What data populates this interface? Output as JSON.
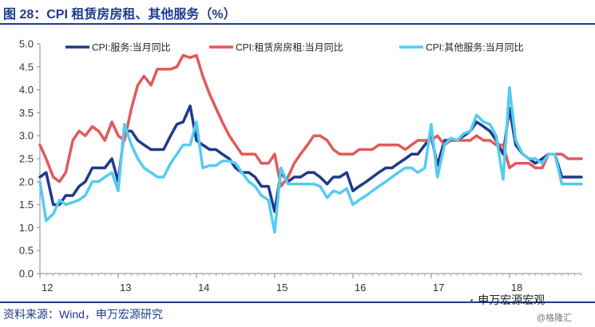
{
  "header": {
    "title": "图 28：CPI 租赁房房租、其他服务（%）"
  },
  "footer": {
    "source": "资料来源：Wind，申万宏源研究"
  },
  "watermark": {
    "text": "申万宏源宏观",
    "sub": "@格隆汇"
  },
  "colors": {
    "services": "#1f3a8a",
    "rent": "#e05a5a",
    "other": "#55ccf0"
  },
  "chart_data": {
    "type": "line",
    "title": "CPI 租赁房房租、其他服务（%）",
    "xlabel": "",
    "ylabel": "",
    "ylim": [
      0.0,
      5.0
    ],
    "yticks": [
      "0.0",
      "0.5",
      "1.0",
      "1.5",
      "2.0",
      "2.5",
      "3.0",
      "3.5",
      "4.0",
      "4.5",
      "5.0"
    ],
    "xlim": [
      2012.0,
      2018.92
    ],
    "xticks": [
      "12",
      "13",
      "14",
      "15",
      "16",
      "17",
      "18"
    ],
    "legend_position": "top",
    "series": [
      {
        "name": "CPI:服务:当月同比",
        "color": "#1f3a8a",
        "x": [
          2012.0,
          2012.08,
          2012.17,
          2012.25,
          2012.33,
          2012.42,
          2012.5,
          2012.58,
          2012.67,
          2012.75,
          2012.83,
          2012.92,
          2013.0,
          2013.08,
          2013.17,
          2013.25,
          2013.33,
          2013.42,
          2013.5,
          2013.58,
          2013.67,
          2013.75,
          2013.83,
          2013.92,
          2014.0,
          2014.08,
          2014.17,
          2014.25,
          2014.33,
          2014.42,
          2014.5,
          2014.58,
          2014.67,
          2014.75,
          2014.83,
          2014.92,
          2015.0,
          2015.08,
          2015.17,
          2015.25,
          2015.33,
          2015.42,
          2015.5,
          2015.58,
          2015.67,
          2015.75,
          2015.83,
          2015.92,
          2016.0,
          2016.08,
          2016.17,
          2016.25,
          2016.33,
          2016.42,
          2016.5,
          2016.58,
          2016.67,
          2016.75,
          2016.83,
          2016.92,
          2017.0,
          2017.08,
          2017.17,
          2017.25,
          2017.33,
          2017.42,
          2017.5,
          2017.58,
          2017.67,
          2017.75,
          2017.83,
          2017.92,
          2018.0,
          2018.08,
          2018.17,
          2018.25,
          2018.33,
          2018.42,
          2018.5,
          2018.58,
          2018.67,
          2018.75,
          2018.83,
          2018.92
        ],
        "values": [
          2.1,
          2.2,
          1.5,
          1.5,
          1.7,
          1.7,
          1.9,
          2.0,
          2.3,
          2.3,
          2.3,
          2.5,
          2.0,
          3.1,
          3.1,
          2.9,
          2.8,
          2.7,
          2.7,
          2.7,
          3.0,
          3.25,
          3.3,
          3.65,
          2.9,
          2.8,
          2.7,
          2.7,
          2.6,
          2.5,
          2.3,
          2.2,
          2.2,
          2.1,
          1.9,
          1.9,
          1.35,
          2.2,
          2.0,
          2.1,
          2.1,
          2.2,
          2.2,
          2.1,
          1.95,
          2.1,
          2.1,
          2.2,
          1.8,
          1.9,
          2.0,
          2.1,
          2.2,
          2.3,
          2.3,
          2.4,
          2.5,
          2.6,
          2.6,
          2.8,
          3.0,
          2.35,
          2.9,
          2.9,
          2.9,
          3.0,
          3.1,
          3.3,
          3.2,
          3.1,
          2.9,
          2.6,
          3.6,
          2.8,
          2.6,
          2.5,
          2.4,
          2.5,
          2.6,
          2.6,
          2.1,
          2.1,
          2.1,
          2.1
        ]
      },
      {
        "name": "CPI:租赁房房租:当月同比",
        "color": "#e05a5a",
        "x": [
          2012.0,
          2012.08,
          2012.17,
          2012.25,
          2012.33,
          2012.42,
          2012.5,
          2012.58,
          2012.67,
          2012.75,
          2012.83,
          2012.92,
          2013.0,
          2013.08,
          2013.17,
          2013.25,
          2013.33,
          2013.42,
          2013.5,
          2013.58,
          2013.67,
          2013.75,
          2013.83,
          2013.92,
          2014.0,
          2014.08,
          2014.17,
          2014.25,
          2014.33,
          2014.42,
          2014.5,
          2014.58,
          2014.67,
          2014.75,
          2014.83,
          2014.92,
          2015.0,
          2015.08,
          2015.17,
          2015.25,
          2015.33,
          2015.42,
          2015.5,
          2015.58,
          2015.67,
          2015.75,
          2015.83,
          2015.92,
          2016.0,
          2016.08,
          2016.17,
          2016.25,
          2016.33,
          2016.42,
          2016.5,
          2016.58,
          2016.67,
          2016.75,
          2016.83,
          2016.92,
          2017.0,
          2017.08,
          2017.17,
          2017.25,
          2017.33,
          2017.42,
          2017.5,
          2017.58,
          2017.67,
          2017.75,
          2017.83,
          2017.92,
          2018.0,
          2018.08,
          2018.17,
          2018.25,
          2018.33,
          2018.42,
          2018.5,
          2018.58,
          2018.67,
          2018.75,
          2018.83,
          2018.92
        ],
        "values": [
          2.8,
          2.5,
          2.1,
          2.0,
          2.2,
          2.9,
          3.1,
          3.0,
          3.2,
          3.1,
          2.9,
          3.3,
          3.0,
          2.9,
          3.6,
          4.1,
          4.3,
          4.1,
          4.45,
          4.45,
          4.45,
          4.5,
          4.75,
          4.7,
          4.75,
          4.3,
          3.9,
          3.6,
          3.3,
          3.0,
          2.8,
          2.6,
          2.6,
          2.6,
          2.4,
          2.4,
          2.6,
          1.9,
          2.1,
          2.4,
          2.6,
          2.8,
          3.0,
          3.0,
          2.9,
          2.7,
          2.6,
          2.6,
          2.6,
          2.7,
          2.7,
          2.7,
          2.8,
          2.8,
          2.8,
          2.8,
          2.7,
          2.8,
          2.9,
          2.9,
          2.9,
          3.0,
          2.8,
          2.9,
          2.9,
          2.9,
          2.9,
          3.0,
          2.9,
          2.9,
          2.8,
          2.8,
          2.3,
          2.4,
          2.4,
          2.4,
          2.3,
          2.3,
          2.6,
          2.6,
          2.6,
          2.5,
          2.5,
          2.5
        ]
      },
      {
        "name": "CPI:其他服务:当月同比",
        "color": "#55ccf0",
        "x": [
          2012.0,
          2012.08,
          2012.17,
          2012.25,
          2012.33,
          2012.42,
          2012.5,
          2012.58,
          2012.67,
          2012.75,
          2012.83,
          2012.92,
          2013.0,
          2013.08,
          2013.17,
          2013.25,
          2013.33,
          2013.42,
          2013.5,
          2013.58,
          2013.67,
          2013.75,
          2013.83,
          2013.92,
          2014.0,
          2014.08,
          2014.17,
          2014.25,
          2014.33,
          2014.42,
          2014.5,
          2014.58,
          2014.67,
          2014.75,
          2014.83,
          2014.92,
          2015.0,
          2015.08,
          2015.17,
          2015.25,
          2015.33,
          2015.42,
          2015.5,
          2015.58,
          2015.67,
          2015.75,
          2015.83,
          2015.92,
          2016.0,
          2016.08,
          2016.17,
          2016.25,
          2016.33,
          2016.42,
          2016.5,
          2016.58,
          2016.67,
          2016.75,
          2016.83,
          2016.92,
          2017.0,
          2017.08,
          2017.17,
          2017.25,
          2017.33,
          2017.42,
          2017.5,
          2017.58,
          2017.67,
          2017.75,
          2017.83,
          2017.92,
          2018.0,
          2018.08,
          2018.17,
          2018.25,
          2018.33,
          2018.42,
          2018.5,
          2018.58,
          2018.67,
          2018.75,
          2018.83,
          2018.92
        ],
        "values": [
          2.0,
          1.15,
          1.3,
          1.6,
          1.5,
          1.55,
          1.6,
          1.7,
          2.0,
          2.0,
          2.1,
          2.2,
          1.8,
          3.25,
          2.8,
          2.5,
          2.3,
          2.2,
          2.1,
          2.1,
          2.4,
          2.6,
          2.8,
          2.8,
          3.3,
          2.3,
          2.35,
          2.35,
          2.45,
          2.45,
          2.4,
          2.2,
          2.0,
          1.9,
          1.7,
          1.6,
          0.9,
          2.3,
          1.95,
          1.95,
          1.95,
          1.95,
          1.95,
          1.9,
          1.65,
          1.8,
          1.75,
          1.85,
          1.5,
          1.6,
          1.7,
          1.8,
          1.9,
          2.0,
          2.1,
          2.2,
          2.3,
          2.3,
          2.2,
          2.3,
          3.25,
          2.1,
          2.8,
          2.95,
          2.9,
          3.05,
          3.1,
          3.45,
          3.3,
          3.25,
          3.0,
          2.05,
          4.05,
          2.9,
          2.6,
          2.5,
          2.5,
          2.4,
          2.6,
          2.6,
          1.95,
          1.95,
          1.95,
          1.95
        ]
      }
    ]
  }
}
